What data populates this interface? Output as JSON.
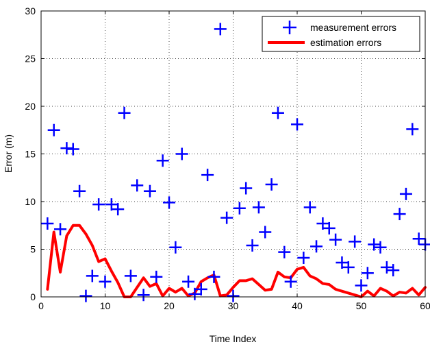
{
  "chart_data": {
    "type": "scatter",
    "title": "",
    "xlabel": "Time Index",
    "ylabel": "Error (m)",
    "xlim": [
      0,
      60
    ],
    "ylim": [
      0,
      30
    ],
    "xticks": [
      "0",
      "10",
      "20",
      "30",
      "40",
      "50",
      "60"
    ],
    "yticks": [
      "0",
      "5",
      "10",
      "15",
      "20",
      "25",
      "30"
    ],
    "grid": true,
    "legend_position": "top-right",
    "series": [
      {
        "name": "measurement errors",
        "type": "scatter",
        "marker": "+",
        "color": "#0000ff",
        "x": [
          1,
          2,
          3,
          4,
          5,
          6,
          7,
          8,
          9,
          10,
          11,
          12,
          13,
          14,
          15,
          16,
          17,
          18,
          19,
          20,
          21,
          22,
          23,
          24,
          25,
          26,
          27,
          28,
          29,
          30,
          31,
          32,
          33,
          34,
          35,
          36,
          37,
          38,
          39,
          40,
          41,
          42,
          43,
          44,
          45,
          46,
          47,
          48,
          49,
          50,
          51,
          52,
          53,
          54,
          55,
          56,
          57,
          58,
          59,
          60
        ],
        "y": [
          7.7,
          17.5,
          7.1,
          15.6,
          15.5,
          11.1,
          0.1,
          2.2,
          9.7,
          1.6,
          9.7,
          9.2,
          19.3,
          2.2,
          11.7,
          0.2,
          11.1,
          2.1,
          14.3,
          9.9,
          5.2,
          15.0,
          1.6,
          0.3,
          0.8,
          12.8,
          2.1,
          28.1,
          8.3,
          0.1,
          9.3,
          11.4,
          5.4,
          9.4,
          6.8,
          11.8,
          19.3,
          4.7,
          1.6,
          18.1,
          4.1,
          9.4,
          5.3,
          7.7,
          7.2,
          6.0,
          3.6,
          3.1,
          5.8,
          1.2,
          2.5,
          5.5,
          5.2,
          3.1,
          2.8,
          8.7,
          10.8,
          17.6,
          6.1,
          5.5
        ]
      },
      {
        "name": "estimation errors",
        "type": "line",
        "color": "#ff0000",
        "x": [
          1,
          2,
          3,
          4,
          5,
          6,
          7,
          8,
          9,
          10,
          11,
          12,
          13,
          14,
          15,
          16,
          17,
          18,
          19,
          20,
          21,
          22,
          23,
          24,
          25,
          26,
          27,
          28,
          29,
          30,
          31,
          32,
          33,
          34,
          35,
          36,
          37,
          38,
          39,
          40,
          41,
          42,
          43,
          44,
          45,
          46,
          47,
          48,
          49,
          50,
          51,
          52,
          53,
          54,
          55,
          56,
          57,
          58,
          59,
          60
        ],
        "y": [
          0.8,
          6.8,
          2.6,
          6.4,
          7.5,
          7.5,
          6.6,
          5.4,
          3.7,
          4.0,
          2.7,
          1.5,
          0.0,
          0.0,
          1.0,
          2.0,
          1.1,
          1.4,
          0.1,
          0.9,
          0.5,
          0.9,
          0.1,
          0.4,
          1.6,
          2.0,
          2.3,
          0.1,
          0.2,
          1.0,
          1.7,
          1.7,
          1.9,
          1.3,
          0.7,
          0.8,
          2.6,
          2.1,
          2.0,
          2.9,
          3.1,
          2.2,
          1.9,
          1.4,
          1.3,
          0.8,
          0.6,
          0.4,
          0.2,
          0.0,
          0.6,
          0.1,
          0.9,
          0.6,
          0.1,
          0.5,
          0.4,
          0.9,
          0.2,
          1.0
        ]
      }
    ]
  }
}
